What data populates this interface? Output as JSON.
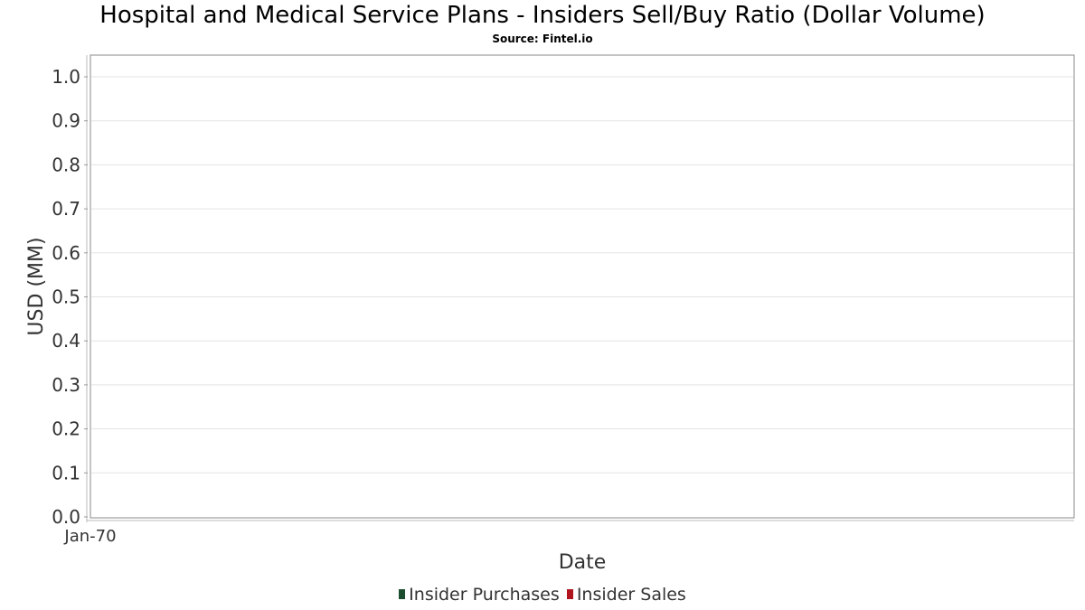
{
  "colors": {
    "purchases": "#1b4d2e",
    "sales": "#b0141e",
    "grid": "#e3e3e3",
    "plot_border": "#888888"
  },
  "chart_data": {
    "type": "bar",
    "title": "Hospital and Medical Service Plans - Insiders Sell/Buy Ratio (Dollar Volume)",
    "subtitle": "Source: Fintel.io",
    "xlabel": "Date",
    "ylabel": "USD (MM)",
    "x_ticks": [
      "Jan-70"
    ],
    "y_ticks": [
      "0.0",
      "0.1",
      "0.2",
      "0.3",
      "0.4",
      "0.5",
      "0.6",
      "0.7",
      "0.8",
      "0.9",
      "1.0"
    ],
    "ylim": [
      0,
      1.05
    ],
    "grid": true,
    "legend_position": "bottom",
    "series": [
      {
        "name": "Insider Purchases",
        "values": []
      },
      {
        "name": "Insider Sales",
        "values": []
      }
    ]
  }
}
